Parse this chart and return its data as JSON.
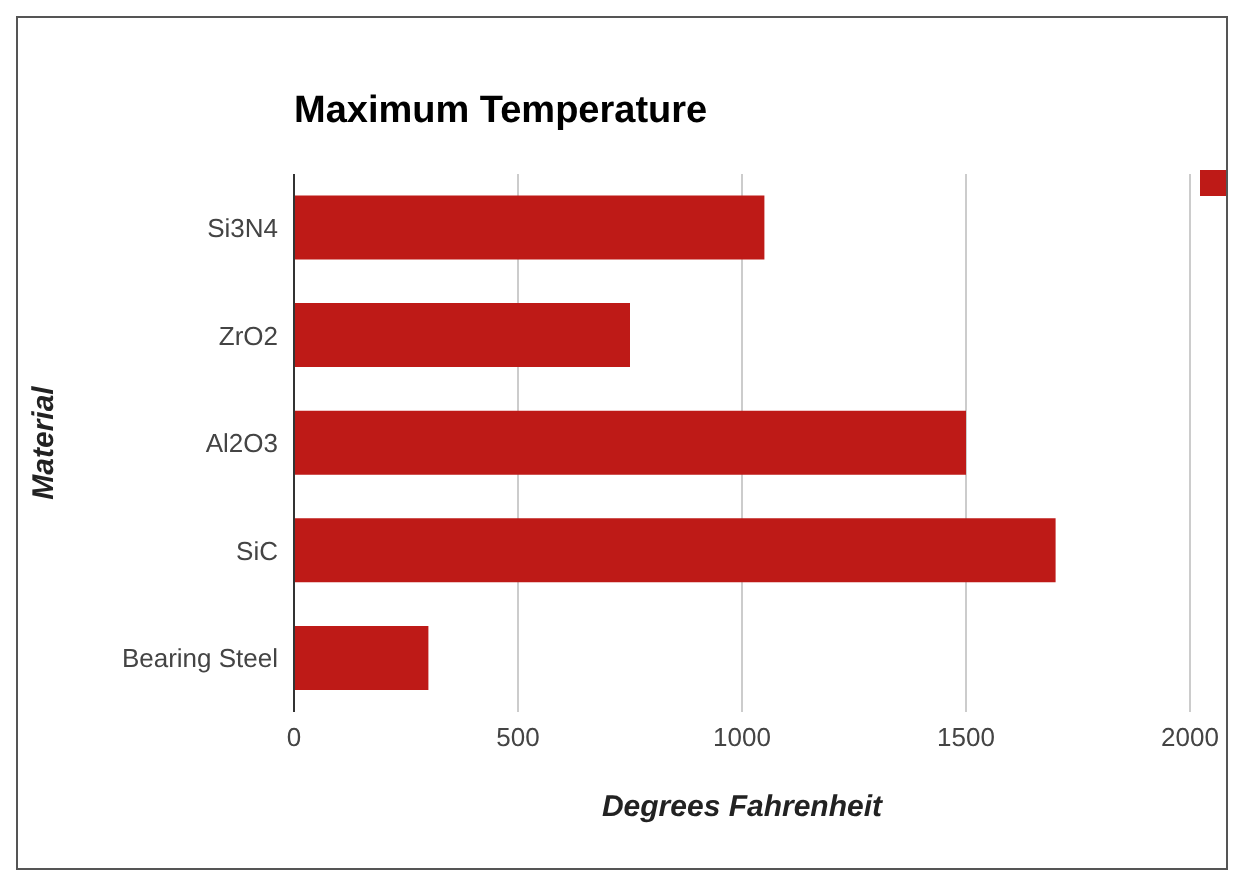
{
  "chart_data": {
    "type": "bar",
    "orientation": "horizontal",
    "title": "Maximum Temperature",
    "xlabel": "Degrees Fahrenheit",
    "ylabel": "Material",
    "categories": [
      "Si3N4",
      "ZrO2",
      "Al2O3",
      "SiC",
      "Bearing Steel"
    ],
    "series": [
      {
        "color": "#be1a17",
        "values": [
          1050,
          750,
          1500,
          1700,
          300
        ]
      }
    ],
    "xlim": [
      0,
      2000
    ],
    "xticks": [
      0,
      500,
      1000,
      1500,
      2000
    ],
    "grid": "x"
  }
}
